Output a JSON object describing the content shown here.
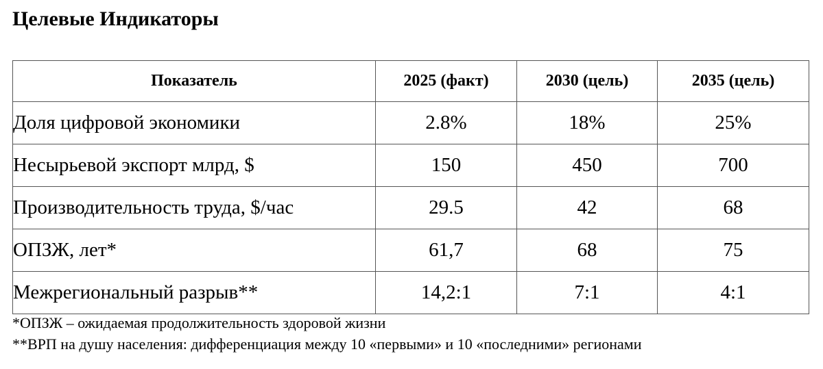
{
  "header": {
    "title": "Целевые Индикаторы"
  },
  "table": {
    "columns": [
      "Показатель",
      "2025 (факт)",
      "2030 (цель)",
      "2035 (цель)"
    ],
    "rows": [
      [
        "Доля цифровой экономики",
        "2.8%",
        "18%",
        "25%"
      ],
      [
        "Несырьевой экспорт млрд, $",
        "150",
        "450",
        "700"
      ],
      [
        "Производительность труда, $/час",
        "29.5",
        "42",
        "68"
      ],
      [
        "ОПЗЖ, лет*",
        "61,7",
        "68",
        "75"
      ],
      [
        "Межрегиональный разрыв**",
        "14,2:1",
        "7:1",
        "4:1"
      ]
    ]
  },
  "footnotes": [
    "*ОПЗЖ – ожидаемая продолжительность здоровой жизни",
    "**ВРП на душу населения: дифференциация между 10 «первыми» и 10 «последними» регионами"
  ]
}
